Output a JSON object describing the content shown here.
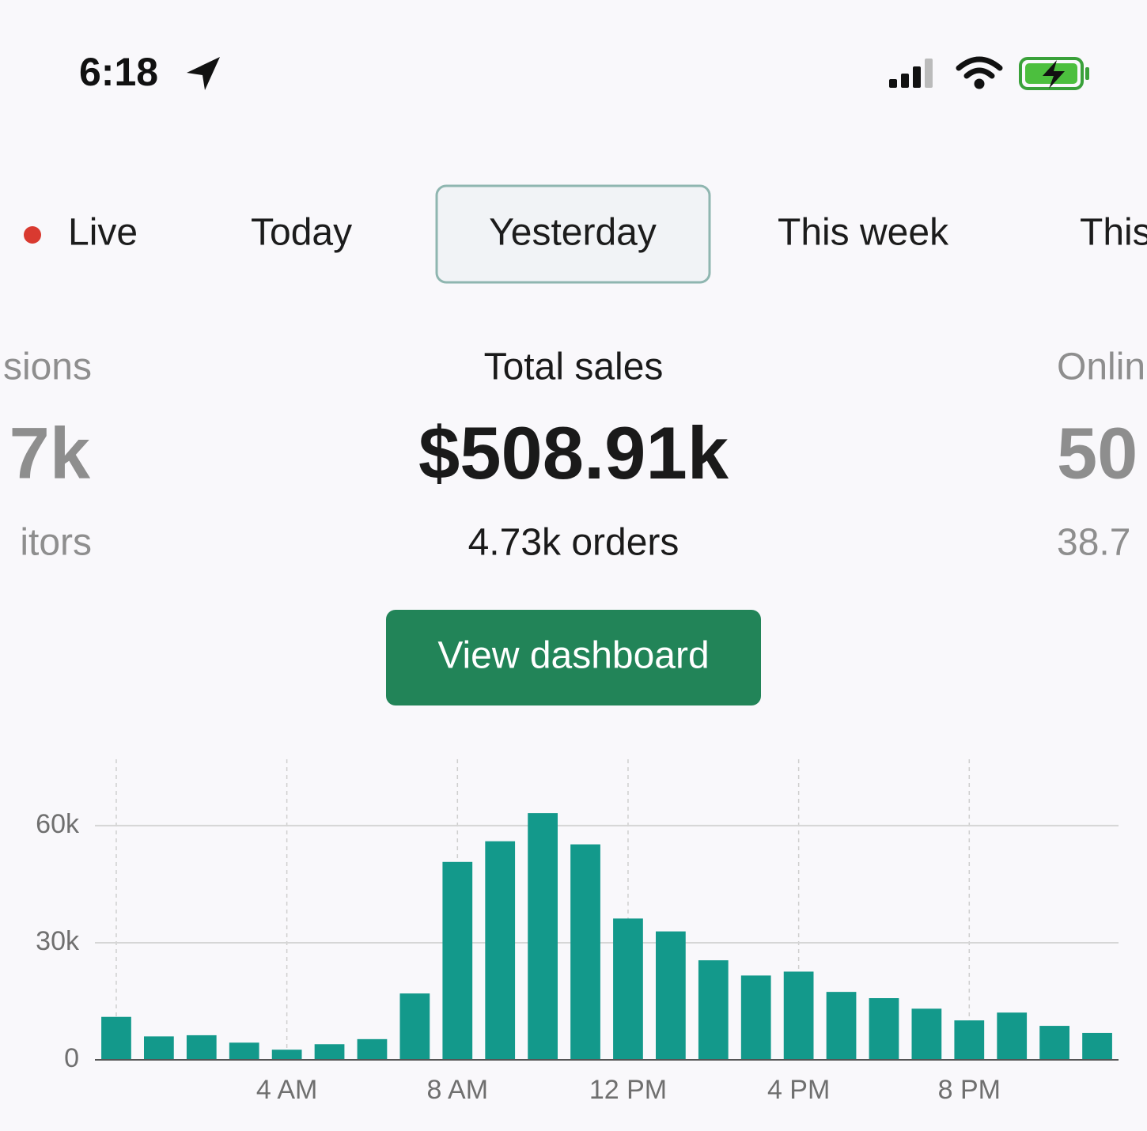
{
  "status_bar": {
    "time": "6:18"
  },
  "tabs": [
    "Live",
    "Today",
    "Yesterday",
    "This week",
    "This"
  ],
  "metrics": [
    {
      "label": "sions",
      "value": "7k",
      "sub": "itors"
    },
    {
      "label": "Total sales",
      "value": "$508.91k",
      "sub": "4.73k orders"
    },
    {
      "label": "Onlin",
      "value": "50",
      "sub": "38.7"
    }
  ],
  "button": "View dashboard",
  "chart_data": {
    "type": "bar",
    "categories": [
      null,
      null,
      null,
      null,
      "4 AM",
      null,
      null,
      null,
      "8 AM",
      null,
      null,
      null,
      "12 PM",
      null,
      null,
      null,
      "4 PM",
      null,
      null,
      null,
      "8 PM",
      null,
      null,
      null
    ],
    "values": [
      11000,
      6000,
      6300,
      4400,
      2600,
      4000,
      5300,
      17000,
      50700,
      56000,
      63200,
      55200,
      36200,
      32900,
      25500,
      21600,
      22600,
      17400,
      15800,
      13100,
      10100,
      12100,
      8700,
      6900
    ],
    "color": "#13998b",
    "ylim": [
      0,
      77000
    ],
    "yticks": [
      0,
      {
        "value": 30000,
        "label": "30k"
      },
      {
        "value": 60000,
        "label": "60k"
      }
    ],
    "grid": true
  }
}
